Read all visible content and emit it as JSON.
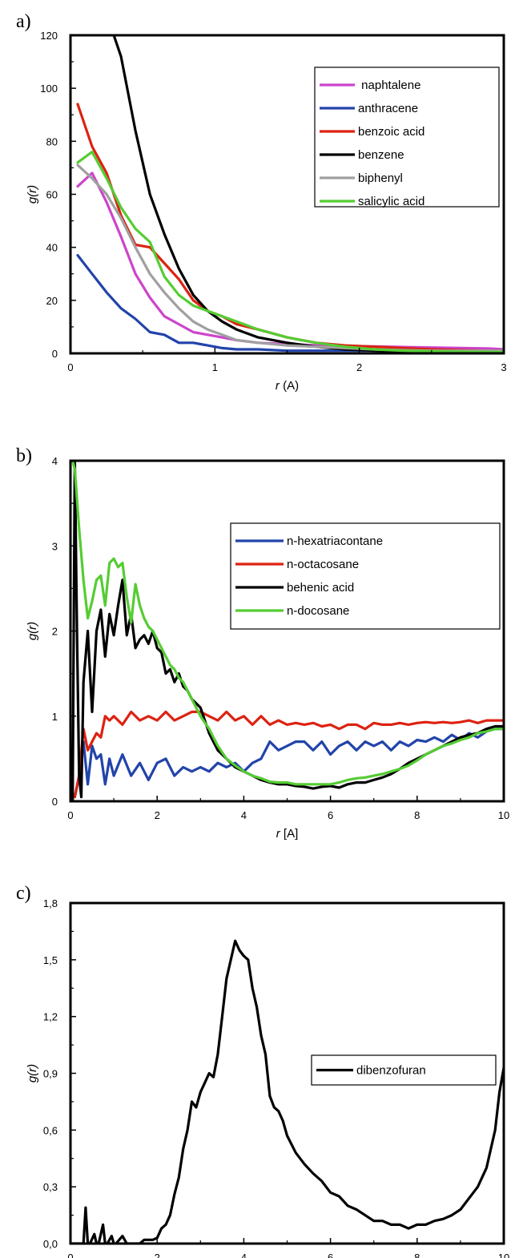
{
  "chart_data": [
    {
      "type": "line",
      "panel_label": "a)",
      "title": "",
      "xlabel_var": "r",
      "xlabel_unit": "(A)",
      "ylabel_var": "g",
      "ylabel_paren": "(r)",
      "xlim": [
        0,
        3
      ],
      "ylim": [
        0,
        120
      ],
      "xticks": [
        0,
        1,
        2,
        3
      ],
      "xtick_labels": [
        "0",
        "1",
        "2",
        "3"
      ],
      "yticks": [
        0,
        20,
        40,
        60,
        80,
        100,
        120
      ],
      "ytick_labels": [
        "0",
        "20",
        "40",
        "60",
        "80",
        "100",
        "120"
      ],
      "grid": false,
      "legend_position": "top-right",
      "series": [
        {
          "name": " naphtalene",
          "color": "#cc44cc",
          "x": [
            0.05,
            0.15,
            0.25,
            0.35,
            0.45,
            0.55,
            0.65,
            0.75,
            0.85,
            0.95,
            1.05,
            1.15,
            1.3,
            1.5,
            1.7,
            1.9,
            2.1,
            2.3,
            2.5,
            2.7,
            2.9,
            3.0
          ],
          "y": [
            63,
            68,
            57,
            44,
            30,
            21,
            14,
            11,
            8,
            7,
            6,
            5,
            4,
            3.5,
            3,
            2.8,
            2.6,
            2.4,
            2.2,
            2.0,
            1.8,
            1.5
          ]
        },
        {
          "name": "anthracene",
          "color": "#2244aa",
          "x": [
            0.05,
            0.15,
            0.25,
            0.35,
            0.45,
            0.55,
            0.65,
            0.75,
            0.85,
            0.95,
            1.05,
            1.15,
            1.3,
            1.5,
            1.7,
            1.9,
            2.1,
            2.3,
            2.5,
            2.7,
            2.9,
            3.0
          ],
          "y": [
            37,
            30,
            23,
            17,
            13,
            8,
            7,
            4,
            4,
            3,
            2,
            1.5,
            1.5,
            1,
            1,
            1,
            1,
            1,
            1,
            1,
            1,
            1
          ]
        },
        {
          "name": "benzoic acid",
          "color": "#dd2211",
          "x": [
            0.05,
            0.15,
            0.25,
            0.35,
            0.45,
            0.55,
            0.65,
            0.75,
            0.85,
            0.95,
            1.05,
            1.15,
            1.3,
            1.5,
            1.7,
            1.9,
            2.1,
            2.3,
            2.5,
            2.7,
            2.9,
            3.0
          ],
          "y": [
            94,
            78,
            68,
            52,
            41,
            40,
            34,
            28,
            20,
            16,
            14,
            11,
            9,
            6,
            4,
            3,
            2.5,
            2,
            1.5,
            1.2,
            1,
            1
          ]
        },
        {
          "name": "benzene",
          "color": "#000000",
          "x": [
            0.3,
            0.35,
            0.45,
            0.55,
            0.65,
            0.75,
            0.85,
            0.95,
            1.05,
            1.15,
            1.3,
            1.5,
            1.7,
            1.9,
            2.1,
            2.3,
            2.5,
            2.7,
            2.9,
            3.0
          ],
          "y": [
            120,
            112,
            84,
            60,
            45,
            32,
            22,
            16,
            12,
            9,
            6,
            4,
            2.5,
            1.5,
            1,
            0.8,
            0.6,
            0.5,
            0.4,
            0.4
          ]
        },
        {
          "name": "biphenyl",
          "color": "#a0a0a0",
          "x": [
            0.05,
            0.15,
            0.25,
            0.35,
            0.45,
            0.55,
            0.65,
            0.75,
            0.85,
            0.95,
            1.05,
            1.15,
            1.3,
            1.5,
            1.7,
            1.9,
            2.1,
            2.3,
            2.5,
            2.7,
            2.9,
            3.0
          ],
          "y": [
            71,
            66,
            60,
            51,
            40,
            30,
            23,
            17,
            12,
            9,
            7,
            5,
            4,
            3,
            2.5,
            2,
            1.5,
            1.2,
            1,
            1,
            1,
            1
          ]
        },
        {
          "name": "salicylic acid",
          "color": "#55cc33",
          "x": [
            0.05,
            0.15,
            0.25,
            0.35,
            0.45,
            0.55,
            0.65,
            0.75,
            0.85,
            0.95,
            1.05,
            1.15,
            1.3,
            1.5,
            1.7,
            1.9,
            2.1,
            2.3,
            2.5,
            2.7,
            2.9,
            3.0
          ],
          "y": [
            72,
            76,
            66,
            55,
            47,
            42,
            29,
            22,
            18,
            16,
            14,
            12,
            9,
            6,
            4,
            2.5,
            1.5,
            1,
            0.8,
            0.6,
            0.5,
            0.5
          ]
        }
      ]
    },
    {
      "type": "line",
      "panel_label": "b)",
      "title": "",
      "xlabel_var": "r",
      "xlabel_unit": " [A]",
      "ylabel_var": "g",
      "ylabel_paren": "(r)",
      "xlim": [
        0,
        10
      ],
      "ylim": [
        0,
        4
      ],
      "xticks": [
        0,
        2,
        4,
        6,
        8,
        10
      ],
      "xtick_labels": [
        "0",
        "2",
        "4",
        "6",
        "8",
        "10"
      ],
      "yticks": [
        0,
        1,
        2,
        3,
        4
      ],
      "ytick_labels": [
        "0",
        "1",
        "2",
        "3",
        "4"
      ],
      "grid": false,
      "legend_position": "top-right",
      "series": [
        {
          "name": "n-hexatriacontane",
          "color": "#2244aa",
          "x": [
            0.1,
            0.2,
            0.3,
            0.4,
            0.5,
            0.6,
            0.7,
            0.8,
            0.9,
            1.0,
            1.2,
            1.4,
            1.6,
            1.8,
            2.0,
            2.2,
            2.4,
            2.6,
            2.8,
            3.0,
            3.2,
            3.4,
            3.6,
            3.8,
            4.0,
            4.2,
            4.4,
            4.6,
            4.8,
            5.0,
            5.2,
            5.4,
            5.6,
            5.8,
            6.0,
            6.2,
            6.4,
            6.6,
            6.8,
            7.0,
            7.2,
            7.4,
            7.6,
            7.8,
            8.0,
            8.2,
            8.4,
            8.6,
            8.8,
            9.0,
            9.2,
            9.4,
            9.6,
            9.8,
            10.0
          ],
          "y": [
            0.05,
            0.3,
            0.7,
            0.2,
            0.65,
            0.5,
            0.55,
            0.2,
            0.5,
            0.3,
            0.55,
            0.3,
            0.45,
            0.25,
            0.45,
            0.5,
            0.3,
            0.4,
            0.35,
            0.4,
            0.35,
            0.45,
            0.4,
            0.45,
            0.35,
            0.45,
            0.5,
            0.7,
            0.6,
            0.65,
            0.7,
            0.7,
            0.6,
            0.7,
            0.55,
            0.65,
            0.7,
            0.6,
            0.7,
            0.65,
            0.7,
            0.6,
            0.7,
            0.65,
            0.72,
            0.7,
            0.75,
            0.7,
            0.78,
            0.72,
            0.8,
            0.75,
            0.82,
            0.85,
            0.85
          ]
        },
        {
          "name": "n-octacosane",
          "color": "#dd2211",
          "x": [
            0.1,
            0.2,
            0.3,
            0.4,
            0.5,
            0.6,
            0.7,
            0.8,
            0.9,
            1.0,
            1.2,
            1.4,
            1.6,
            1.8,
            2.0,
            2.2,
            2.4,
            2.6,
            2.8,
            3.0,
            3.2,
            3.4,
            3.6,
            3.8,
            4.0,
            4.2,
            4.4,
            4.6,
            4.8,
            5.0,
            5.2,
            5.4,
            5.6,
            5.8,
            6.0,
            6.2,
            6.4,
            6.6,
            6.8,
            7.0,
            7.2,
            7.4,
            7.6,
            7.8,
            8.0,
            8.2,
            8.4,
            8.6,
            8.8,
            9.0,
            9.2,
            9.4,
            9.6,
            9.8,
            10.0
          ],
          "y": [
            0.05,
            0.3,
            0.85,
            0.6,
            0.7,
            0.8,
            0.75,
            1.0,
            0.95,
            1.0,
            0.9,
            1.05,
            0.95,
            1.0,
            0.95,
            1.05,
            0.95,
            1.0,
            1.05,
            1.05,
            1.0,
            0.95,
            1.05,
            0.95,
            1.0,
            0.9,
            1.0,
            0.9,
            0.95,
            0.9,
            0.92,
            0.9,
            0.92,
            0.88,
            0.9,
            0.85,
            0.9,
            0.9,
            0.85,
            0.92,
            0.9,
            0.9,
            0.92,
            0.9,
            0.92,
            0.93,
            0.92,
            0.93,
            0.92,
            0.93,
            0.95,
            0.92,
            0.95,
            0.95,
            0.95
          ]
        },
        {
          "name": "behenic acid",
          "color": "#000000",
          "x": [
            0.05,
            0.1,
            0.15,
            0.2,
            0.25,
            0.3,
            0.4,
            0.5,
            0.6,
            0.7,
            0.8,
            0.9,
            1.0,
            1.1,
            1.2,
            1.3,
            1.4,
            1.5,
            1.6,
            1.7,
            1.8,
            1.9,
            2.0,
            2.1,
            2.2,
            2.3,
            2.4,
            2.5,
            2.6,
            2.7,
            2.8,
            3.0,
            3.2,
            3.4,
            3.6,
            3.8,
            4.0,
            4.2,
            4.4,
            4.6,
            4.8,
            5.0,
            5.2,
            5.4,
            5.6,
            5.8,
            6.0,
            6.2,
            6.4,
            6.6,
            6.8,
            7.0,
            7.2,
            7.4,
            7.6,
            7.8,
            8.0,
            8.2,
            8.4,
            8.6,
            8.8,
            9.0,
            9.2,
            9.4,
            9.6,
            9.8,
            10.0
          ],
          "y": [
            0,
            4.0,
            2.0,
            0.3,
            0.05,
            1.4,
            2.0,
            1.05,
            2.0,
            2.25,
            1.7,
            2.2,
            1.95,
            2.3,
            2.6,
            1.95,
            2.2,
            1.8,
            1.9,
            1.95,
            1.85,
            2.0,
            1.8,
            1.75,
            1.5,
            1.55,
            1.4,
            1.5,
            1.35,
            1.3,
            1.2,
            1.1,
            0.8,
            0.6,
            0.5,
            0.4,
            0.35,
            0.3,
            0.25,
            0.22,
            0.2,
            0.2,
            0.18,
            0.17,
            0.15,
            0.17,
            0.18,
            0.16,
            0.2,
            0.22,
            0.22,
            0.25,
            0.28,
            0.32,
            0.38,
            0.45,
            0.5,
            0.55,
            0.6,
            0.65,
            0.7,
            0.75,
            0.78,
            0.8,
            0.85,
            0.88,
            0.88
          ]
        },
        {
          "name": "n-docosane",
          "color": "#55cc33",
          "x": [
            0.05,
            0.1,
            0.2,
            0.3,
            0.4,
            0.5,
            0.6,
            0.7,
            0.8,
            0.9,
            1.0,
            1.1,
            1.2,
            1.3,
            1.4,
            1.5,
            1.6,
            1.7,
            1.8,
            1.9,
            2.0,
            2.1,
            2.2,
            2.3,
            2.4,
            2.5,
            2.6,
            2.7,
            2.8,
            3.0,
            3.2,
            3.4,
            3.6,
            3.8,
            4.0,
            4.2,
            4.4,
            4.6,
            4.8,
            5.0,
            5.2,
            5.4,
            5.6,
            5.8,
            6.0,
            6.2,
            6.4,
            6.6,
            6.8,
            7.0,
            7.2,
            7.4,
            7.6,
            7.8,
            8.0,
            8.2,
            8.4,
            8.6,
            8.8,
            9.0,
            9.2,
            9.4,
            9.6,
            9.8,
            10.0
          ],
          "y": [
            4.0,
            3.9,
            3.2,
            2.6,
            2.15,
            2.35,
            2.6,
            2.65,
            2.3,
            2.8,
            2.85,
            2.75,
            2.8,
            2.4,
            2.1,
            2.55,
            2.3,
            2.15,
            2.05,
            2.0,
            1.9,
            1.8,
            1.7,
            1.6,
            1.55,
            1.45,
            1.4,
            1.3,
            1.2,
            1.0,
            0.85,
            0.65,
            0.5,
            0.42,
            0.35,
            0.3,
            0.27,
            0.23,
            0.22,
            0.22,
            0.2,
            0.2,
            0.2,
            0.2,
            0.2,
            0.22,
            0.25,
            0.27,
            0.28,
            0.3,
            0.32,
            0.35,
            0.38,
            0.42,
            0.48,
            0.55,
            0.6,
            0.65,
            0.68,
            0.72,
            0.75,
            0.8,
            0.82,
            0.85,
            0.85
          ]
        }
      ]
    },
    {
      "type": "line",
      "panel_label": "c)",
      "title": "",
      "xlabel_var": "r",
      "xlabel_unit": " [A]",
      "ylabel_var": "g",
      "ylabel_paren": "(r)",
      "xlim": [
        0,
        10
      ],
      "ylim": [
        0,
        1.8
      ],
      "xticks": [
        0,
        2,
        4,
        6,
        8,
        10
      ],
      "xtick_labels": [
        "0",
        "2",
        "4",
        "6",
        "8",
        "10"
      ],
      "yticks": [
        0,
        0.3,
        0.6,
        0.9,
        1.2,
        1.5,
        1.8
      ],
      "ytick_labels": [
        "0,0",
        "0,3",
        "0,6",
        "0,9",
        "1,2",
        "1,5",
        "1,8"
      ],
      "grid": false,
      "legend_position": "right",
      "series": [
        {
          "name": "dibenzofuran",
          "color": "#000000",
          "x": [
            0.0,
            0.3,
            0.35,
            0.4,
            0.45,
            0.55,
            0.6,
            0.65,
            0.75,
            0.8,
            0.85,
            0.95,
            1.0,
            1.05,
            1.2,
            1.3,
            1.4,
            1.5,
            1.6,
            1.7,
            1.8,
            1.9,
            2.0,
            2.1,
            2.2,
            2.3,
            2.4,
            2.5,
            2.6,
            2.7,
            2.8,
            2.9,
            3.0,
            3.1,
            3.2,
            3.3,
            3.4,
            3.5,
            3.6,
            3.7,
            3.8,
            3.9,
            4.0,
            4.1,
            4.2,
            4.3,
            4.4,
            4.5,
            4.6,
            4.7,
            4.8,
            4.9,
            5.0,
            5.2,
            5.4,
            5.6,
            5.8,
            6.0,
            6.2,
            6.4,
            6.6,
            6.8,
            7.0,
            7.2,
            7.4,
            7.6,
            7.8,
            8.0,
            8.2,
            8.4,
            8.6,
            8.8,
            9.0,
            9.2,
            9.4,
            9.6,
            9.8,
            9.9,
            10.0
          ],
          "y": [
            0,
            0,
            0.19,
            0,
            0,
            0.05,
            0,
            0,
            0.1,
            0,
            0,
            0.04,
            0,
            0,
            0.04,
            0,
            0,
            0,
            0,
            0.02,
            0.02,
            0.02,
            0.03,
            0.08,
            0.1,
            0.15,
            0.26,
            0.35,
            0.5,
            0.6,
            0.75,
            0.72,
            0.8,
            0.85,
            0.9,
            0.88,
            1.0,
            1.2,
            1.4,
            1.5,
            1.6,
            1.55,
            1.52,
            1.5,
            1.35,
            1.25,
            1.1,
            1.0,
            0.78,
            0.72,
            0.7,
            0.65,
            0.57,
            0.48,
            0.42,
            0.37,
            0.33,
            0.27,
            0.25,
            0.2,
            0.18,
            0.15,
            0.12,
            0.12,
            0.1,
            0.1,
            0.08,
            0.1,
            0.1,
            0.12,
            0.13,
            0.15,
            0.18,
            0.24,
            0.3,
            0.4,
            0.6,
            0.8,
            0.93
          ]
        }
      ]
    }
  ]
}
